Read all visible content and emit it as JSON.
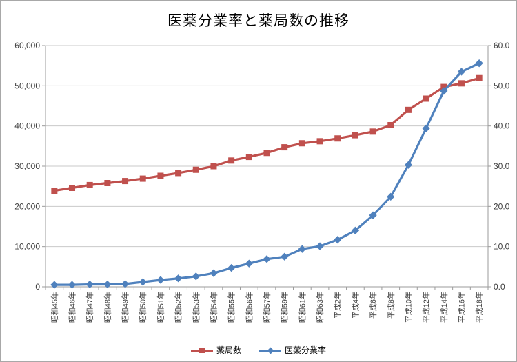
{
  "window": {
    "title": "医薬分業率と薬局数の推移"
  },
  "chart_data": {
    "type": "line",
    "title": "医薬分業率と薬局数の推移",
    "categories": [
      "昭和45年",
      "昭和46年",
      "昭和47年",
      "昭和48年",
      "昭和49年",
      "昭和50年",
      "昭和51年",
      "昭和52年",
      "昭和53年",
      "昭和54年",
      "昭和55年",
      "昭和56年",
      "昭和57年",
      "昭和59年",
      "昭和61年",
      "昭和63年",
      "平成2年",
      "平成4年",
      "平成6年",
      "平成8年",
      "平成10年",
      "平成12年",
      "平成14年",
      "平成16年",
      "平成18年"
    ],
    "series": [
      {
        "name": "薬局数",
        "axis": "left",
        "color": "#C0504D",
        "marker": "square",
        "values": [
          23900,
          24600,
          25300,
          25800,
          26300,
          26900,
          27600,
          28300,
          29100,
          30000,
          31400,
          32300,
          33300,
          34700,
          35700,
          36200,
          36900,
          37700,
          38600,
          40200,
          44000,
          46800,
          49700,
          50600,
          51900
        ]
      },
      {
        "name": "医薬分業率",
        "axis": "right",
        "color": "#4F81BD",
        "marker": "diamond",
        "values": [
          0.5,
          0.5,
          0.6,
          0.6,
          0.7,
          1.2,
          1.7,
          2.1,
          2.6,
          3.4,
          4.7,
          5.8,
          6.9,
          7.5,
          9.4,
          10.1,
          11.7,
          14.0,
          17.8,
          22.4,
          30.3,
          39.4,
          48.7,
          53.5,
          55.6
        ]
      }
    ],
    "axes": {
      "left": {
        "min": 0,
        "max": 60000,
        "step": 10000,
        "tick_labels": [
          "0",
          "10,000",
          "20,000",
          "30,000",
          "40,000",
          "50,000",
          "60,000"
        ]
      },
      "right": {
        "min": 0,
        "max": 60,
        "step": 10,
        "tick_labels": [
          "0.0",
          "10.0",
          "20.0",
          "30.0",
          "40.0",
          "50.0",
          "60.0"
        ]
      }
    },
    "grid": true,
    "legend_position": "bottom"
  },
  "legend": {
    "items": [
      {
        "label": "薬局数",
        "color": "#C0504D",
        "marker": "square"
      },
      {
        "label": "医薬分業率",
        "color": "#4F81BD",
        "marker": "diamond"
      }
    ]
  }
}
